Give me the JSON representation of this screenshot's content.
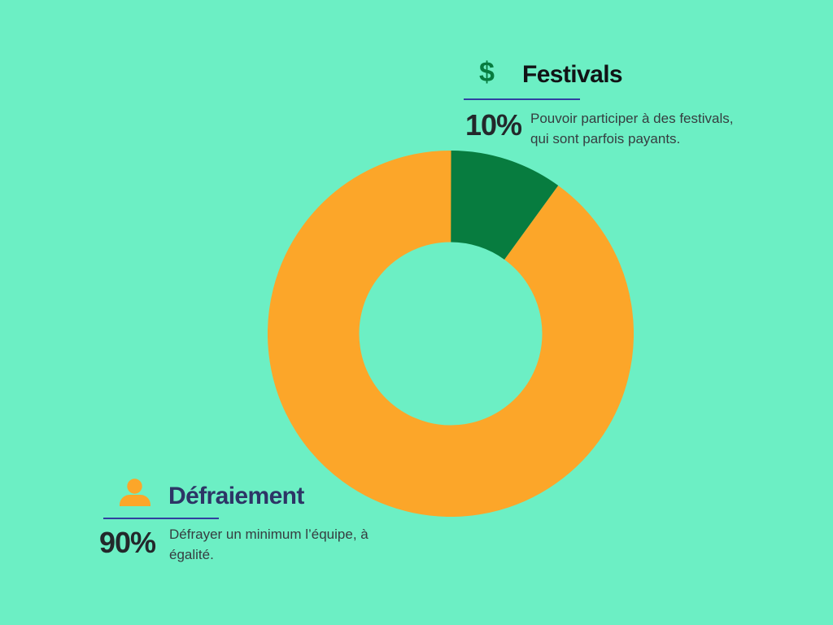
{
  "colors": {
    "background": "#6CEFC4",
    "orange": "#FCA629",
    "green": "#077C3F",
    "navy": "#2D3566",
    "line": "#3040A0",
    "title-dark": "#111315",
    "percent": "#23282B",
    "description": "#363D40"
  },
  "chart_data": {
    "type": "pie",
    "subtype": "donut",
    "categories": [
      "Festivals",
      "Défraiement"
    ],
    "values": [
      10,
      90
    ],
    "colors": [
      "#077C3F",
      "#FCA629"
    ],
    "start_angle_deg": 0,
    "direction": "clockwise",
    "inner_radius_ratio": 0.5,
    "labels_shown_as": "callouts"
  },
  "callouts": {
    "festivals": {
      "icon": "dollar-icon",
      "icon_char": "$",
      "title": "Festivals",
      "percent": "10%",
      "description": "Pouvoir participer à des festivals,\nqui sont parfois payants."
    },
    "defraiement": {
      "icon": "person-icon",
      "title": "Défraiement",
      "percent": "90%",
      "description": "Défrayer un minimum l’équipe, à\négalité."
    }
  }
}
